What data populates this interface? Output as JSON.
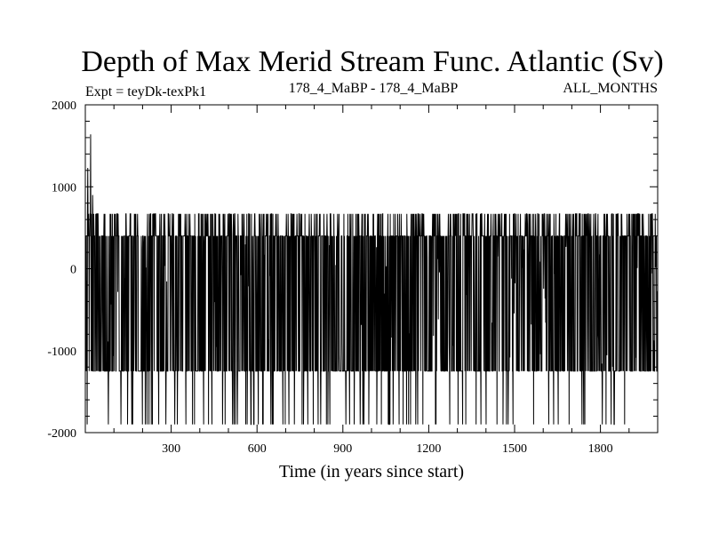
{
  "chart_data": {
    "type": "line",
    "title": "Depth of Max Merid Stream Func. Atlantic (Sv)",
    "subtitle_left": "Expt = teyDk-texPk1",
    "subtitle_center": "178_4_MaBP - 178_4_MaBP",
    "subtitle_right": "ALL_MONTHS",
    "xlabel": "Time (in years since start)",
    "ylabel": "",
    "xlim": [
      0,
      2000
    ],
    "ylim": [
      -2000,
      2000
    ],
    "xticks": [
      300,
      600,
      900,
      1200,
      1500,
      1800
    ],
    "yticks": [
      -2000,
      -1000,
      0,
      1000,
      2000
    ],
    "x_tick_labels": [
      "300",
      "600",
      "900",
      "1200",
      "1500",
      "1800"
    ],
    "y_tick_labels": [
      "-2000",
      "-1000",
      "0",
      "1000",
      "2000"
    ],
    "grid": false,
    "color": "#000000",
    "levels": [
      -1900,
      -1250,
      400,
      670
    ],
    "spikes": [
      {
        "x": 8,
        "y": 1230
      },
      {
        "x": 18,
        "y": 1640
      },
      {
        "x": 25,
        "y": 900
      }
    ],
    "n_points": 2000
  }
}
